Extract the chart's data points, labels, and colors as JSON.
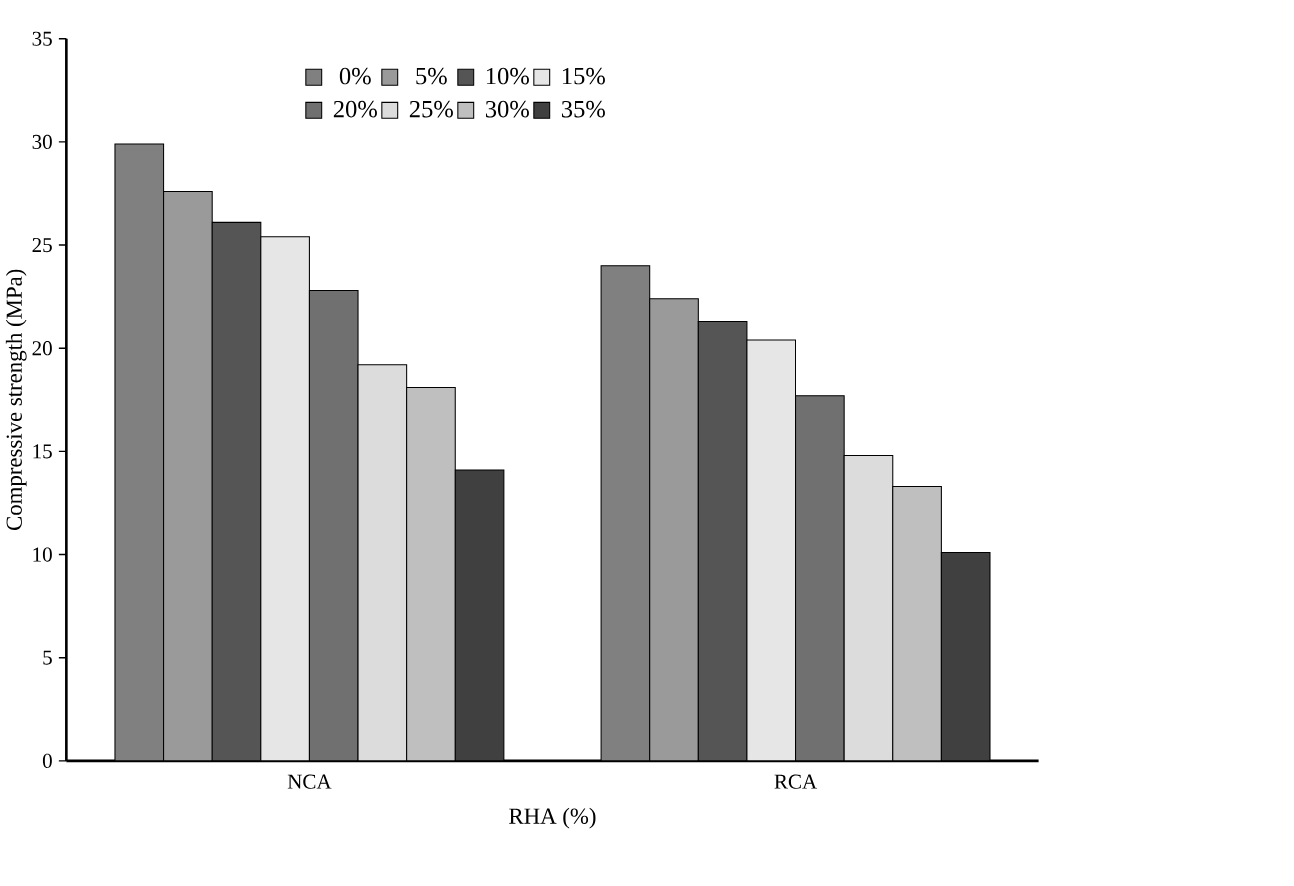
{
  "chart_data": {
    "type": "bar",
    "xlabel": "RHA (%)",
    "ylabel": "Compressive strength (MPa)",
    "categories": [
      "NCA",
      "RCA"
    ],
    "series": [
      {
        "name": "0%",
        "color": "#808080",
        "values": [
          29.9,
          24.0
        ]
      },
      {
        "name": "5%",
        "color": "#9a9a9a",
        "values": [
          27.6,
          22.4
        ]
      },
      {
        "name": "10%",
        "color": "#555555",
        "values": [
          26.1,
          21.3
        ]
      },
      {
        "name": "15%",
        "color": "#e6e6e6",
        "values": [
          25.4,
          20.4
        ]
      },
      {
        "name": "20%",
        "color": "#707070",
        "values": [
          22.8,
          17.7
        ]
      },
      {
        "name": "25%",
        "color": "#dcdcdc",
        "values": [
          19.2,
          14.8
        ]
      },
      {
        "name": "30%",
        "color": "#bfbfbf",
        "values": [
          18.1,
          13.3
        ]
      },
      {
        "name": "35%",
        "color": "#404040",
        "values": [
          14.1,
          10.1
        ]
      }
    ],
    "ylim": [
      0,
      35
    ],
    "yticks": [
      0,
      5,
      10,
      15,
      20,
      25,
      30,
      35
    ],
    "legend": "top"
  }
}
